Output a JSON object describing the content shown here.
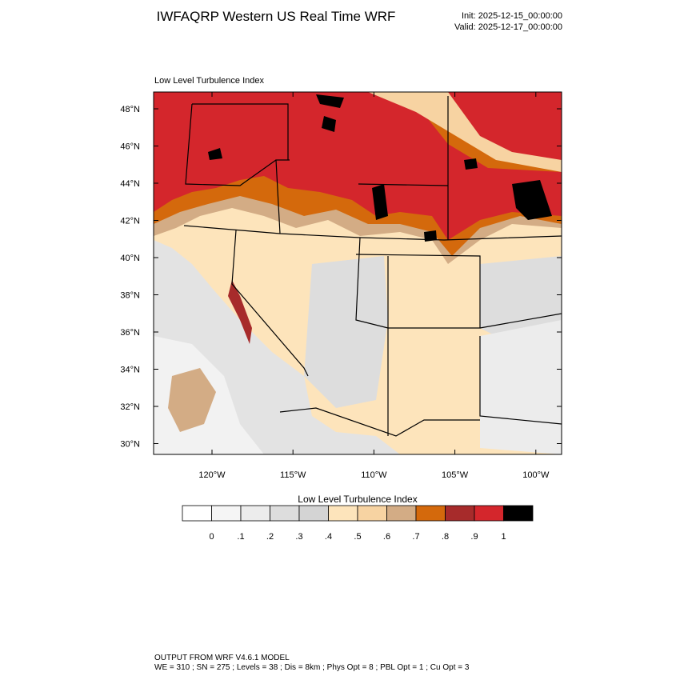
{
  "header": {
    "title": "IWFAQRP Western US Real Time WRF",
    "init": "Init: 2025-12-15_00:00:00",
    "valid": "Valid: 2025-12-17_00:00:00"
  },
  "map": {
    "title": "Low Level Turbulence Index",
    "lat_labels": [
      "48°N",
      "46°N",
      "44°N",
      "42°N",
      "40°N",
      "38°N",
      "36°N",
      "34°N",
      "32°N",
      "30°N"
    ],
    "lon_labels": [
      "120°W",
      "115°W",
      "110°W",
      "105°W",
      "100°W"
    ]
  },
  "colorbar": {
    "title": "Low Level Turbulence Index",
    "colors": [
      "#ffffff",
      "#f5f5f5",
      "#ececec",
      "#dddddd",
      "#d4d4d4",
      "#fde4bb",
      "#f7d3a2",
      "#d3ac85",
      "#d4690c",
      "#a72b2b",
      "#d4262c",
      "#000000"
    ],
    "labels": [
      "0",
      ".1",
      ".2",
      ".3",
      ".4",
      ".5",
      ".6",
      ".7",
      ".8",
      ".9",
      "1"
    ]
  },
  "footer": {
    "line1": "OUTPUT FROM WRF V4.6.1 MODEL",
    "line2": "WE = 310 ; SN = 275 ; Levels = 38 ; Dis = 8km ; Phys Opt = 8 ; PBL Opt = 1 ; Cu Opt = 3"
  }
}
